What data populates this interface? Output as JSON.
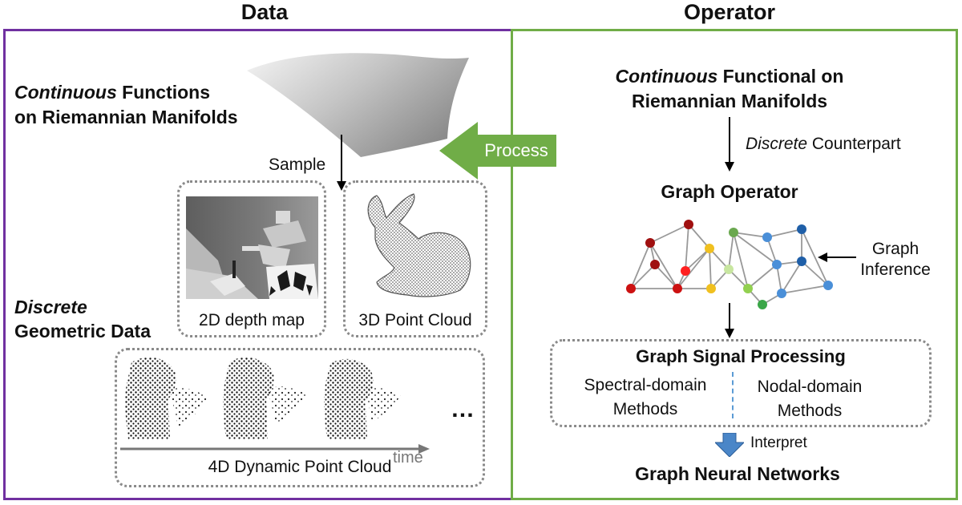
{
  "headings": {
    "left": "Data",
    "right": "Operator"
  },
  "left": {
    "continuous_word": "Continuous",
    "continuous_rest": " Functions",
    "continuous_line2": "on Riemannian Manifolds",
    "sample": "Sample",
    "depth_label": "2D depth map",
    "cloud3d_label": "3D Point Cloud",
    "discrete_word": "Discrete",
    "discrete_line2": "Geometric Data",
    "ellipsis": "…",
    "cloud4d_label": "4D Dynamic Point Cloud",
    "time_label": "time"
  },
  "process_label": "Process",
  "right": {
    "continuous_word": "Continuous",
    "functional_rest": " Functional on",
    "functional_line2": "Riemannian Manifolds",
    "discrete_word": "Discrete",
    "counterpart_rest": " Counterpart",
    "graph_operator": "Graph Operator",
    "graph_inference_line1": "Graph",
    "graph_inference_line2": "Inference",
    "gsp_title": "Graph Signal Processing",
    "spectral_line1": "Spectral-domain",
    "spectral_line2": "Methods",
    "nodal_line1": "Nodal-domain",
    "nodal_line2": "Methods",
    "interpret": "Interpret",
    "gnn": "Graph Neural Networks"
  },
  "colors": {
    "left_border": "#7030a0",
    "right_border": "#70ad47",
    "process_arrow": "#70ad47",
    "interpret_arrow": "#4a86c8",
    "node_red": "#cc1111",
    "node_darkred": "#a01010",
    "node_yellow": "#f0c020",
    "node_lightgreen": "#92d050",
    "node_green": "#3aa648",
    "node_blue": "#4a8fd8",
    "node_darkblue": "#1f5fa8",
    "divider": "#5b9bd5"
  }
}
